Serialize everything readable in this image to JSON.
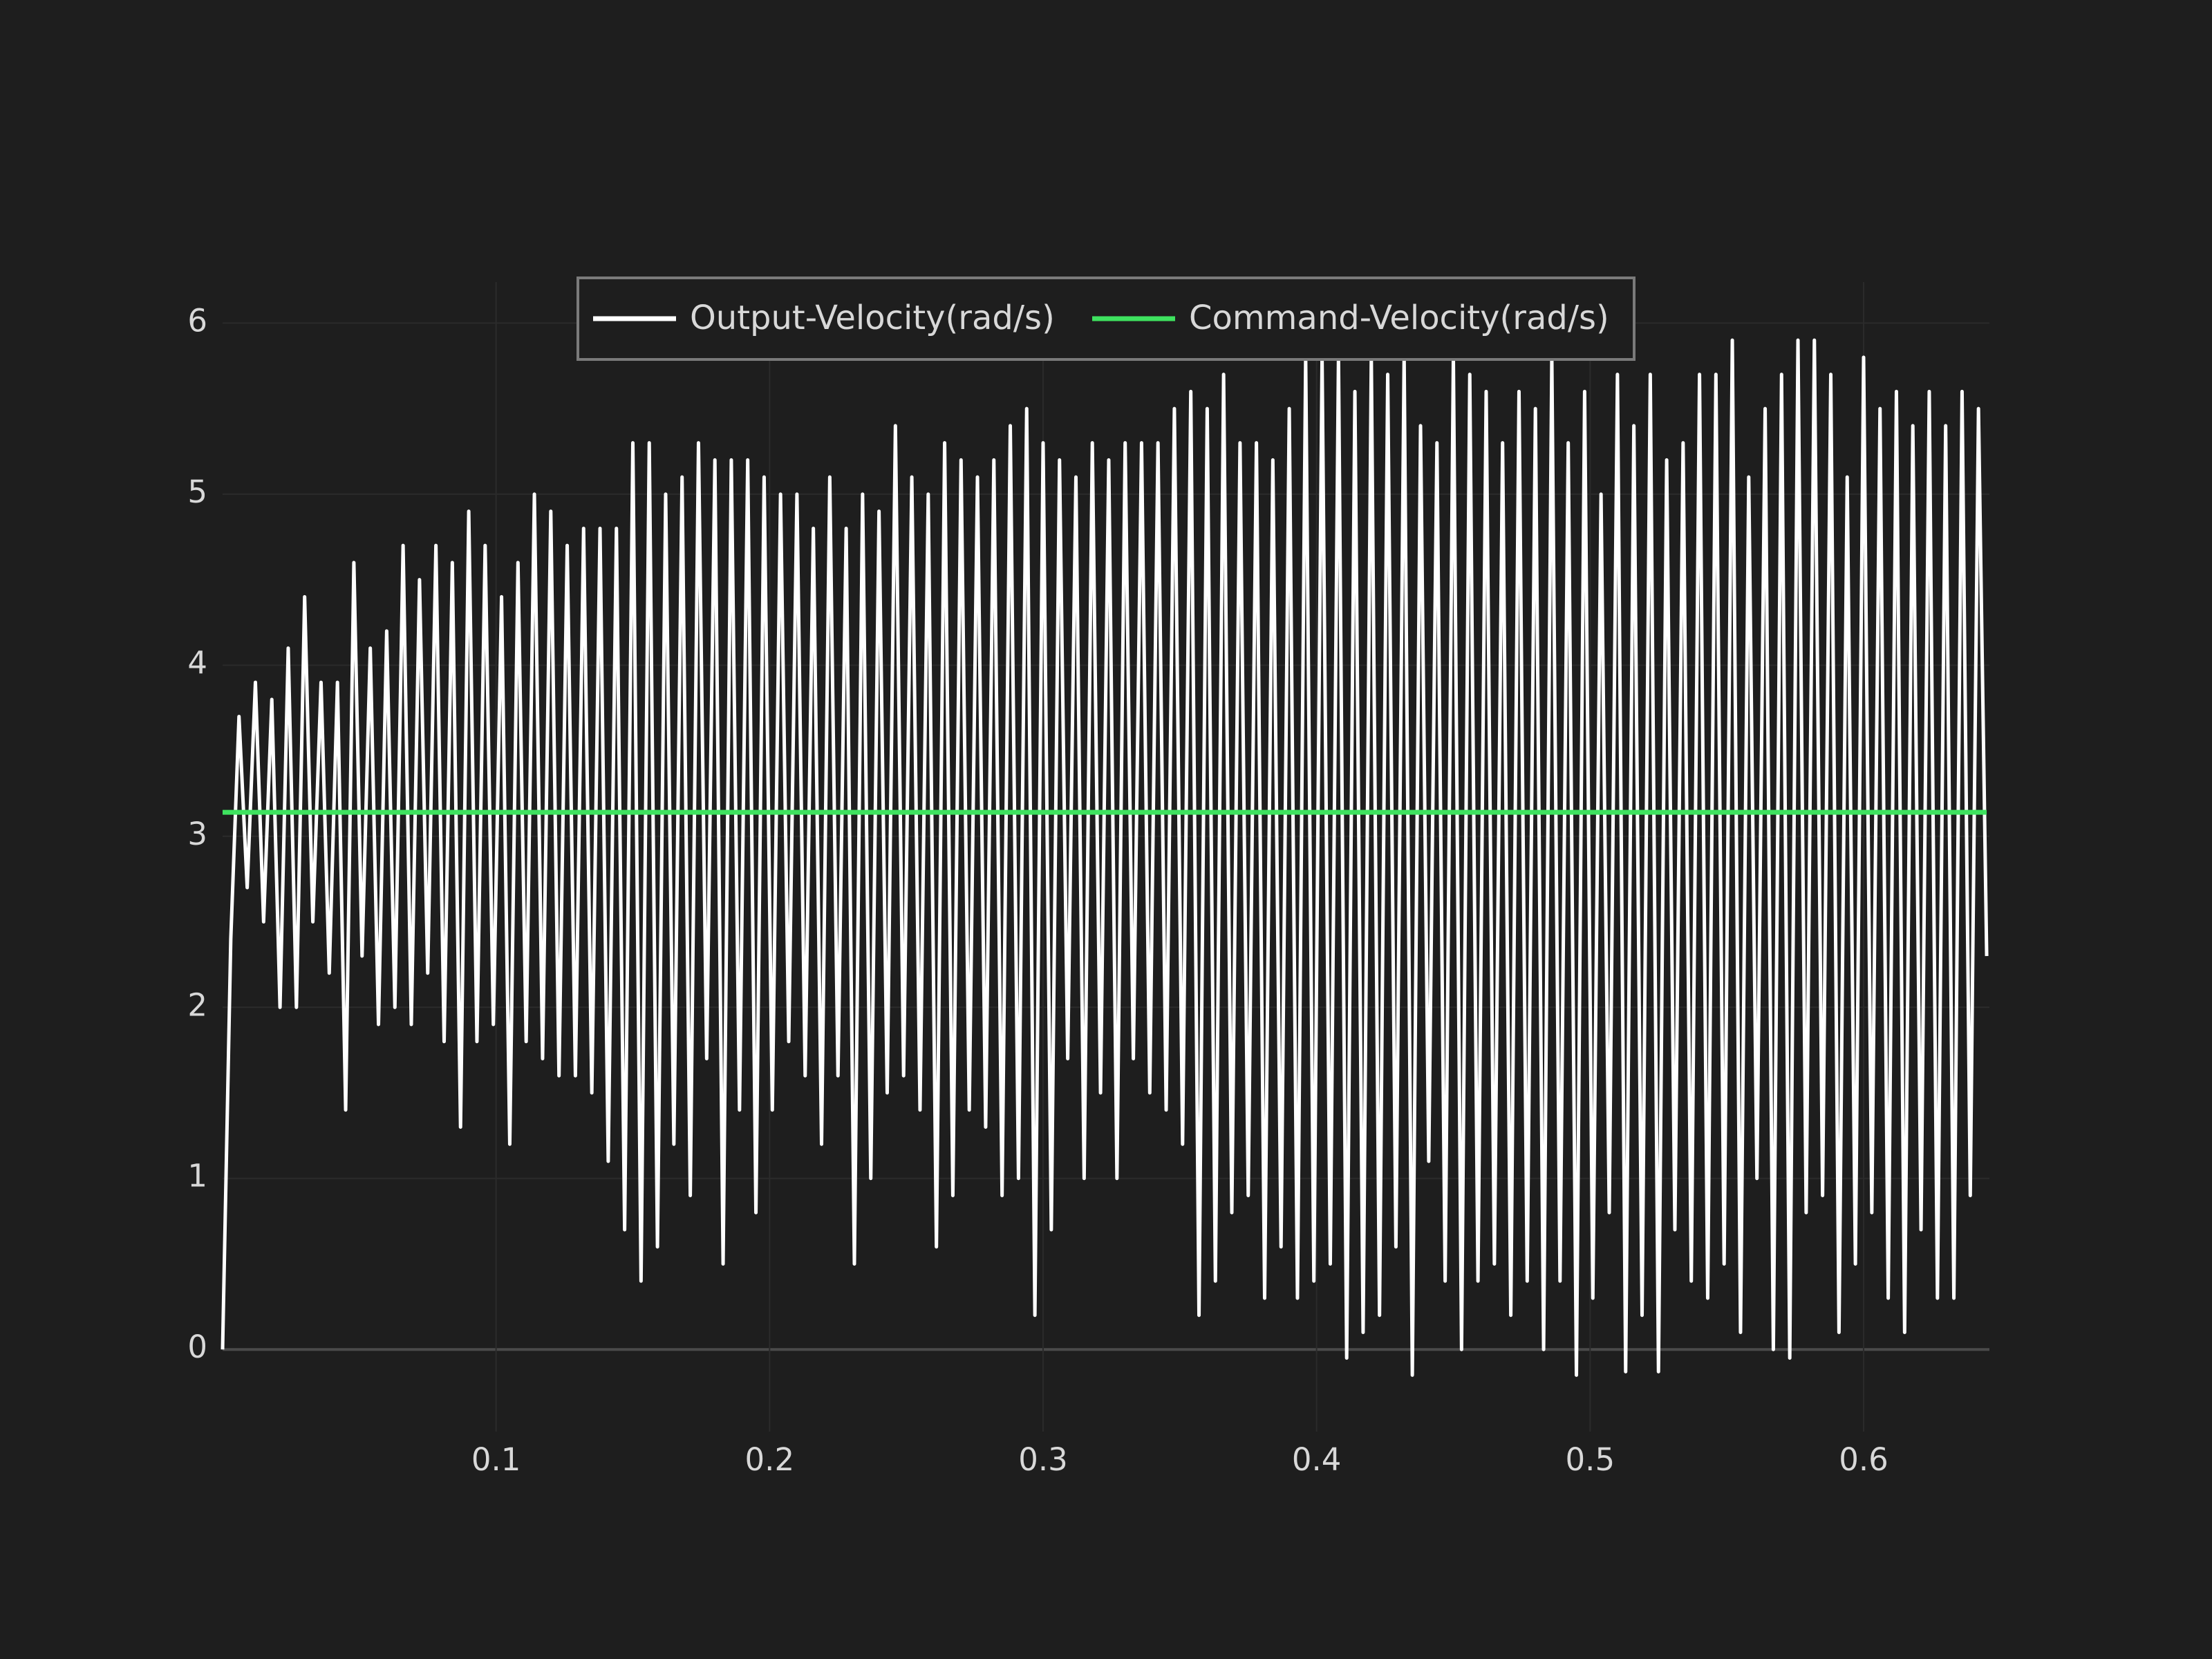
{
  "chart_data": {
    "type": "line",
    "xlim": [
      0,
      0.646
    ],
    "ylim": [
      -0.48,
      6.24
    ],
    "xticks": [
      0.1,
      0.2,
      0.3,
      0.4,
      0.5,
      0.6
    ],
    "yticks": [
      0,
      1,
      2,
      3,
      4,
      5,
      6
    ],
    "grid": true,
    "legend": "top",
    "series": [
      {
        "name": "Output-Velocity(rad/s)",
        "color": "#ffffff",
        "x": [
          0,
          0.003,
          0.006,
          0.009,
          0.012,
          0.015,
          0.018,
          0.021,
          0.024,
          0.027,
          0.03,
          0.033,
          0.036,
          0.039,
          0.042,
          0.045,
          0.048,
          0.051,
          0.054,
          0.057,
          0.06,
          0.063,
          0.066,
          0.069,
          0.072,
          0.075,
          0.078,
          0.081,
          0.084,
          0.087,
          0.09,
          0.093,
          0.096,
          0.099,
          0.102,
          0.105,
          0.108,
          0.111,
          0.114,
          0.117,
          0.12,
          0.123,
          0.126,
          0.129,
          0.132,
          0.135,
          0.138,
          0.141,
          0.144,
          0.147,
          0.15,
          0.153,
          0.156,
          0.159,
          0.162,
          0.165,
          0.168,
          0.171,
          0.174,
          0.177,
          0.18,
          0.183,
          0.186,
          0.189,
          0.192,
          0.195,
          0.198,
          0.201,
          0.204,
          0.207,
          0.21,
          0.213,
          0.216,
          0.219,
          0.222,
          0.225,
          0.228,
          0.231,
          0.234,
          0.237,
          0.24,
          0.243,
          0.246,
          0.249,
          0.252,
          0.255,
          0.258,
          0.261,
          0.264,
          0.267,
          0.27,
          0.273,
          0.276,
          0.279,
          0.282,
          0.285,
          0.288,
          0.291,
          0.294,
          0.297,
          0.3,
          0.303,
          0.306,
          0.309,
          0.312,
          0.315,
          0.318,
          0.321,
          0.324,
          0.327,
          0.33,
          0.333,
          0.336,
          0.339,
          0.342,
          0.345,
          0.348,
          0.351,
          0.354,
          0.357,
          0.36,
          0.363,
          0.366,
          0.369,
          0.372,
          0.375,
          0.378,
          0.381,
          0.384,
          0.387,
          0.39,
          0.393,
          0.396,
          0.399,
          0.402,
          0.405,
          0.408,
          0.411,
          0.414,
          0.417,
          0.42,
          0.423,
          0.426,
          0.429,
          0.432,
          0.435,
          0.438,
          0.441,
          0.444,
          0.447,
          0.45,
          0.453,
          0.456,
          0.459,
          0.462,
          0.465,
          0.468,
          0.471,
          0.474,
          0.477,
          0.48,
          0.483,
          0.486,
          0.489,
          0.492,
          0.495,
          0.498,
          0.501,
          0.504,
          0.507,
          0.51,
          0.513,
          0.516,
          0.519,
          0.522,
          0.525,
          0.528,
          0.531,
          0.534,
          0.537,
          0.54,
          0.543,
          0.546,
          0.549,
          0.552,
          0.555,
          0.558,
          0.561,
          0.564,
          0.567,
          0.57,
          0.573,
          0.576,
          0.579,
          0.582,
          0.585,
          0.588,
          0.591,
          0.594,
          0.597,
          0.6,
          0.603,
          0.606,
          0.609,
          0.612,
          0.615,
          0.618,
          0.621,
          0.624,
          0.627,
          0.63,
          0.633,
          0.636,
          0.639,
          0.642,
          0.645
        ],
        "values": [
          0,
          2.4,
          3.7,
          2.7,
          3.9,
          2.5,
          3.8,
          2.0,
          4.1,
          2.0,
          4.4,
          2.5,
          3.9,
          2.2,
          3.9,
          1.4,
          4.6,
          2.3,
          4.1,
          1.9,
          4.2,
          2.0,
          4.7,
          1.9,
          4.5,
          2.2,
          4.7,
          1.8,
          4.6,
          1.3,
          4.9,
          1.8,
          4.7,
          1.9,
          4.4,
          1.2,
          4.6,
          1.8,
          5.0,
          1.7,
          4.9,
          1.6,
          4.7,
          1.6,
          4.8,
          1.5,
          4.8,
          1.1,
          4.8,
          0.7,
          5.3,
          0.4,
          5.3,
          0.6,
          5.0,
          1.2,
          5.1,
          0.9,
          5.3,
          1.7,
          5.2,
          0.5,
          5.2,
          1.4,
          5.2,
          0.8,
          5.1,
          1.4,
          5.0,
          1.8,
          5.0,
          1.6,
          4.8,
          1.2,
          5.1,
          1.6,
          4.8,
          0.5,
          5.0,
          1.0,
          4.9,
          1.5,
          5.4,
          1.6,
          5.1,
          1.4,
          5.0,
          0.6,
          5.3,
          0.9,
          5.2,
          1.4,
          5.1,
          1.3,
          5.2,
          0.9,
          5.4,
          1.0,
          5.5,
          0.2,
          5.3,
          0.7,
          5.2,
          1.7,
          5.1,
          1.0,
          5.3,
          1.5,
          5.2,
          1.0,
          5.3,
          1.7,
          5.3,
          1.5,
          5.3,
          1.4,
          5.5,
          1.2,
          5.6,
          0.2,
          5.5,
          0.4,
          5.7,
          0.8,
          5.3,
          0.9,
          5.3,
          0.3,
          5.2,
          0.6,
          5.5,
          0.3,
          5.8,
          0.4,
          5.8,
          0.5,
          5.8,
          -0.05,
          5.6,
          0.1,
          5.8,
          0.2,
          5.7,
          0.6,
          5.8,
          -0.15,
          5.4,
          1.1,
          5.3,
          0.4,
          5.8,
          0.0,
          5.7,
          0.4,
          5.6,
          0.5,
          5.3,
          0.2,
          5.6,
          0.4,
          5.5,
          0.0,
          5.8,
          0.4,
          5.3,
          -0.15,
          5.6,
          0.3,
          5.0,
          0.8,
          5.7,
          -0.13,
          5.4,
          0.2,
          5.7,
          -0.13,
          5.2,
          0.7,
          5.3,
          0.4,
          5.7,
          0.3,
          5.7,
          0.5,
          5.9,
          0.1,
          5.1,
          1.0,
          5.5,
          0.0,
          5.7,
          -0.05,
          5.9,
          0.8,
          5.9,
          0.9,
          5.7,
          0.1,
          5.1,
          0.5,
          5.8,
          0.8,
          5.5,
          0.3,
          5.6,
          0.1,
          5.4,
          0.7,
          5.6,
          0.3,
          5.4,
          0.3,
          5.6,
          0.9,
          5.5,
          2.3
        ]
      },
      {
        "name": "Command-Velocity(rad/s)",
        "color": "#3ee25f",
        "x": [
          0,
          0.645
        ],
        "values": [
          3.14,
          3.14
        ]
      }
    ]
  }
}
